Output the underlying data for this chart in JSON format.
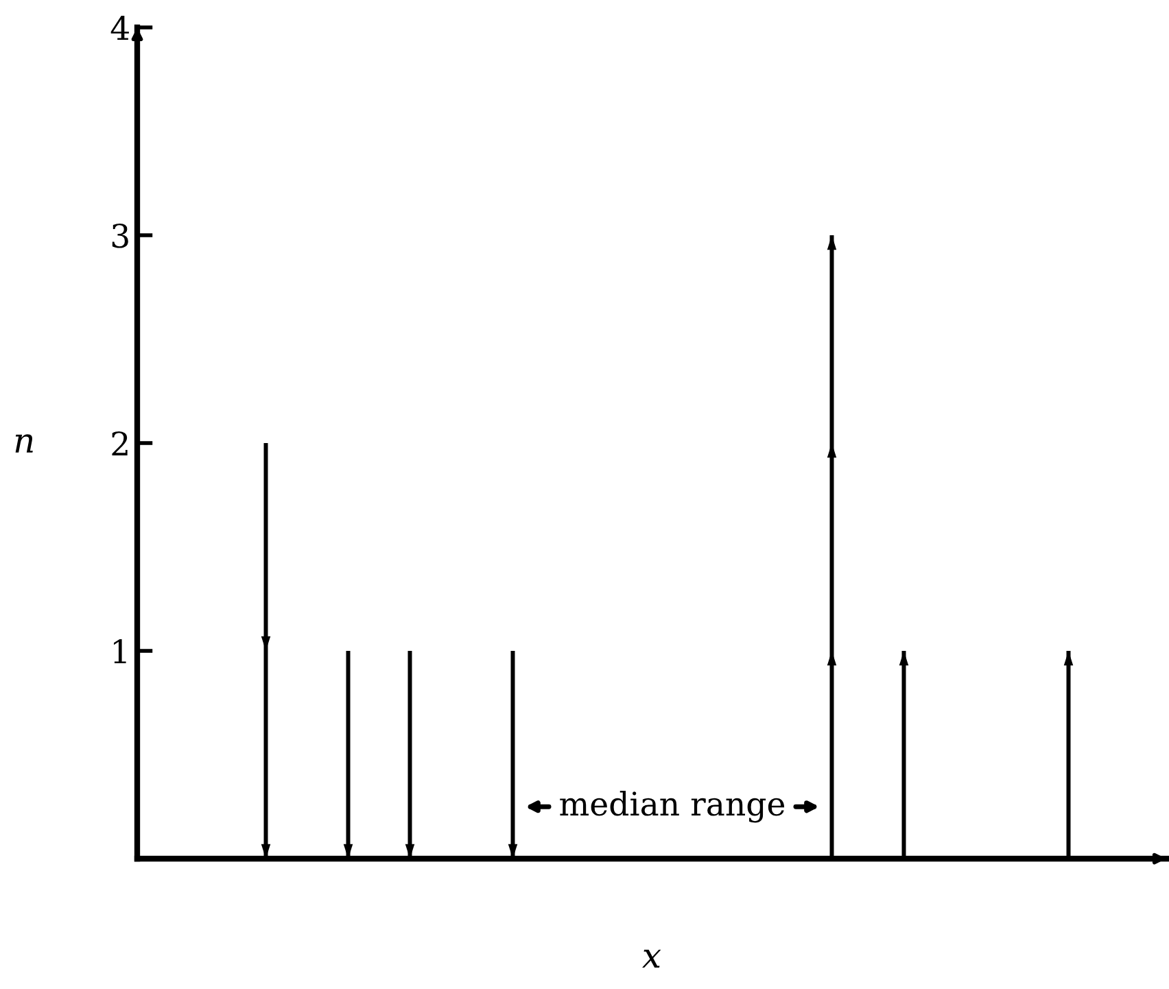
{
  "chart_data": {
    "type": "bar",
    "xlabel": "x",
    "ylabel": "n",
    "categories": [
      null,
      null,
      null,
      null,
      null,
      null,
      null,
      null,
      null,
      null,
      null,
      null,
      null,
      null,
      null,
      null,
      null,
      null,
      null,
      null,
      null,
      null,
      null,
      null,
      null,
      null,
      null,
      null,
      null,
      null,
      null,
      null,
      null,
      null,
      null,
      null,
      null,
      null,
      null,
      null,
      null,
      null,
      null,
      null,
      null,
      null,
      null,
      null,
      null,
      null,
      null,
      null,
      null,
      null,
      null,
      null,
      null,
      null,
      null,
      null,
      null,
      null,
      null,
      null,
      null,
      null,
      null,
      null,
      null,
      null,
      null,
      null,
      null,
      null,
      null,
      null,
      null,
      null,
      null,
      null,
      null,
      null,
      null,
      null,
      null,
      null,
      null,
      null,
      null,
      null,
      null,
      null,
      null,
      null,
      null,
      null,
      null,
      null,
      null,
      null
    ],
    "series": [
      {
        "color": "#000000",
        "values": [
          null,
          null,
          null,
          null,
          null,
          null,
          null,
          null,
          null,
          null,
          null,
          null,
          2,
          null,
          null,
          null,
          null,
          null,
          null,
          null,
          1,
          null,
          null,
          null,
          null,
          null,
          1,
          null,
          null,
          null,
          null,
          null,
          null,
          null,
          null,
          null,
          1,
          null,
          null,
          null,
          null,
          null,
          null,
          null,
          null,
          null,
          null,
          null,
          null,
          null,
          null,
          null,
          null,
          null,
          null,
          null,
          null,
          null,
          null,
          null,
          null,
          null,
          null,
          null,
          null,
          null,
          null,
          null,
          null,
          null,
          null,
          null,
          null,
          null,
          null,
          null,
          null,
          null,
          null,
          null,
          null,
          null,
          null,
          null,
          null,
          null,
          null,
          null,
          null,
          null,
          null,
          null,
          null,
          null,
          null,
          null,
          null,
          null,
          null,
          null
        ]
      },
      {
        "color": "#000000",
        "values": [
          null,
          null,
          null,
          null,
          null,
          null,
          null,
          null,
          null,
          null,
          null,
          null,
          null,
          null,
          null,
          null,
          null,
          null,
          null,
          null,
          null,
          null,
          null,
          null,
          null,
          null,
          null,
          null,
          null,
          null,
          null,
          null,
          null,
          null,
          null,
          null,
          null,
          null,
          null,
          null,
          null,
          null,
          null,
          null,
          null,
          null,
          null,
          null,
          null,
          null,
          null,
          null,
          null,
          null,
          null,
          null,
          null,
          null,
          null,
          null,
          null,
          null,
          null,
          null,
          null,
          null,
          null,
          3,
          null,
          null,
          null,
          null,
          null,
          null,
          1,
          null,
          null,
          null,
          null,
          null,
          null,
          null,
          null,
          null,
          null,
          null,
          null,
          null,
          null,
          null,
          1,
          null,
          null,
          null,
          null,
          null,
          null,
          null,
          null,
          null
        ]
      }
    ],
    "ylim": [
      0,
      4
    ],
    "yticks": [
      1,
      2,
      3,
      4
    ],
    "annotations": [
      "median range"
    ],
    "grid": false,
    "legend": false
  }
}
